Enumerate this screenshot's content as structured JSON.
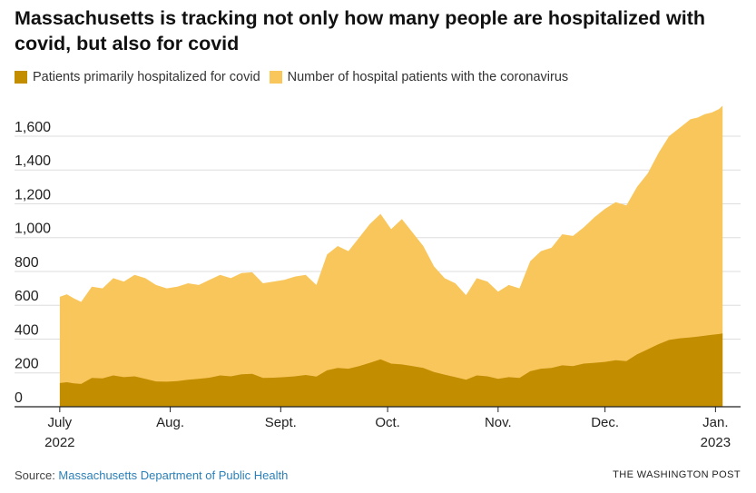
{
  "title": "Massachusetts is tracking not only how many people are hospitalized with covid, but also for covid",
  "legend": [
    {
      "label": "Patients primarily hospitalized for covid",
      "color": "#c38d00"
    },
    {
      "label": "Number of hospital patients with the coronavirus",
      "color": "#f9c65b"
    }
  ],
  "footer": {
    "source_prefix": "Source: ",
    "source_link": "Massachusetts Department of Public Health",
    "credit": "THE WASHINGTON POST"
  },
  "colors": {
    "primary": "#c38d00",
    "total": "#f9c65b",
    "grid": "#dddddd",
    "axis": "#222222",
    "link": "#2b80b9"
  },
  "chart_data": {
    "type": "area",
    "stacked": false,
    "ylim": [
      0,
      1750
    ],
    "yticks": [
      0,
      200,
      400,
      600,
      800,
      1000,
      1200,
      1400,
      1600
    ],
    "ytick_labels": [
      "0",
      "200",
      "400",
      "600",
      "800",
      "1,000",
      "1,200",
      "1,400",
      "1,600"
    ],
    "xlim": [
      "2022-06-29",
      "2023-01-06"
    ],
    "xticks": [
      {
        "date": "2022-07-01",
        "label": "July",
        "sublabel": "2022"
      },
      {
        "date": "2022-08-01",
        "label": "Aug.",
        "sublabel": ""
      },
      {
        "date": "2022-09-01",
        "label": "Sept.",
        "sublabel": ""
      },
      {
        "date": "2022-10-01",
        "label": "Oct.",
        "sublabel": ""
      },
      {
        "date": "2022-11-01",
        "label": "Nov.",
        "sublabel": ""
      },
      {
        "date": "2022-12-01",
        "label": "Dec.",
        "sublabel": ""
      },
      {
        "date": "2023-01-01",
        "label": "Jan.",
        "sublabel": "2023"
      }
    ],
    "grid": true,
    "legend_position": "top-left",
    "x": [
      "2022-07-01",
      "2022-07-03",
      "2022-07-05",
      "2022-07-07",
      "2022-07-10",
      "2022-07-13",
      "2022-07-16",
      "2022-07-19",
      "2022-07-22",
      "2022-07-25",
      "2022-07-28",
      "2022-07-31",
      "2022-08-03",
      "2022-08-06",
      "2022-08-09",
      "2022-08-12",
      "2022-08-15",
      "2022-08-18",
      "2022-08-21",
      "2022-08-24",
      "2022-08-27",
      "2022-08-30",
      "2022-09-02",
      "2022-09-05",
      "2022-09-08",
      "2022-09-11",
      "2022-09-14",
      "2022-09-17",
      "2022-09-20",
      "2022-09-23",
      "2022-09-26",
      "2022-09-29",
      "2022-10-02",
      "2022-10-05",
      "2022-10-08",
      "2022-10-11",
      "2022-10-14",
      "2022-10-17",
      "2022-10-20",
      "2022-10-23",
      "2022-10-26",
      "2022-10-29",
      "2022-11-01",
      "2022-11-04",
      "2022-11-07",
      "2022-11-10",
      "2022-11-13",
      "2022-11-16",
      "2022-11-19",
      "2022-11-22",
      "2022-11-25",
      "2022-11-28",
      "2022-12-01",
      "2022-12-04",
      "2022-12-07",
      "2022-12-10",
      "2022-12-13",
      "2022-12-16",
      "2022-12-19",
      "2022-12-22",
      "2022-12-25",
      "2022-12-27",
      "2022-12-29",
      "2022-12-31",
      "2023-01-02",
      "2023-01-03"
    ],
    "series": [
      {
        "name": "Number of hospital patients with the coronavirus",
        "values": [
          650,
          665,
          640,
          620,
          710,
          700,
          760,
          740,
          780,
          760,
          720,
          700,
          710,
          730,
          720,
          750,
          780,
          760,
          790,
          795,
          730,
          740,
          750,
          770,
          780,
          720,
          900,
          950,
          920,
          1000,
          1080,
          1140,
          1050,
          1110,
          1030,
          950,
          830,
          760,
          730,
          660,
          760,
          740,
          680,
          720,
          700,
          860,
          920,
          940,
          1020,
          1010,
          1060,
          1120,
          1170,
          1210,
          1190,
          1300,
          1380,
          1500,
          1600,
          1650,
          1700,
          1710,
          1730,
          1740,
          1760,
          1780
        ]
      },
      {
        "name": "Patients primarily hospitalized for covid",
        "values": [
          140,
          145,
          138,
          135,
          170,
          168,
          185,
          175,
          180,
          165,
          150,
          148,
          152,
          160,
          165,
          172,
          185,
          180,
          192,
          195,
          170,
          172,
          175,
          180,
          188,
          178,
          215,
          230,
          225,
          240,
          260,
          280,
          255,
          250,
          240,
          230,
          205,
          190,
          175,
          160,
          185,
          180,
          165,
          175,
          170,
          210,
          225,
          230,
          245,
          240,
          255,
          260,
          265,
          275,
          270,
          310,
          340,
          370,
          395,
          405,
          410,
          415,
          420,
          425,
          430,
          433
        ]
      }
    ]
  }
}
